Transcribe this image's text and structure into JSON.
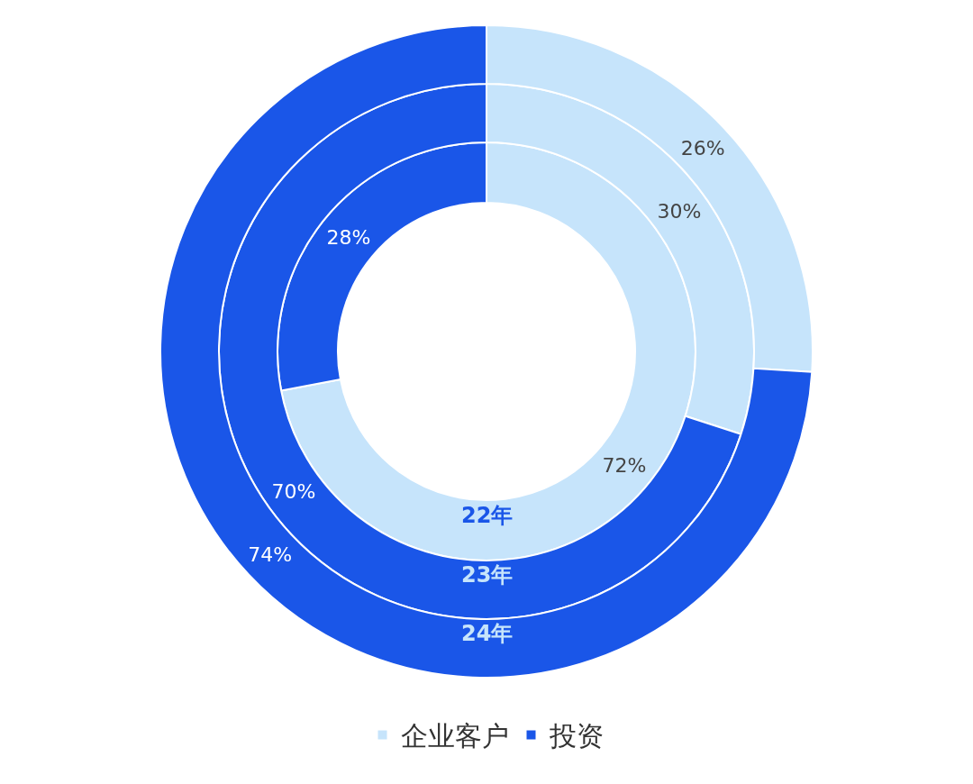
{
  "chart_data": {
    "type": "donut",
    "categories": [
      "企业客户",
      "投资"
    ],
    "colors": [
      "#c6e4fb",
      "#1a56e8"
    ],
    "series": [
      {
        "name": "22年",
        "values": [
          72,
          28
        ],
        "value_labels": [
          "72%",
          "28%"
        ]
      },
      {
        "name": "23年",
        "values": [
          30,
          70
        ],
        "value_labels": [
          "30%",
          "70%"
        ]
      },
      {
        "name": "24年",
        "values": [
          26,
          74
        ],
        "value_labels": [
          "26%",
          "74%"
        ]
      }
    ],
    "legend": "bottom"
  }
}
